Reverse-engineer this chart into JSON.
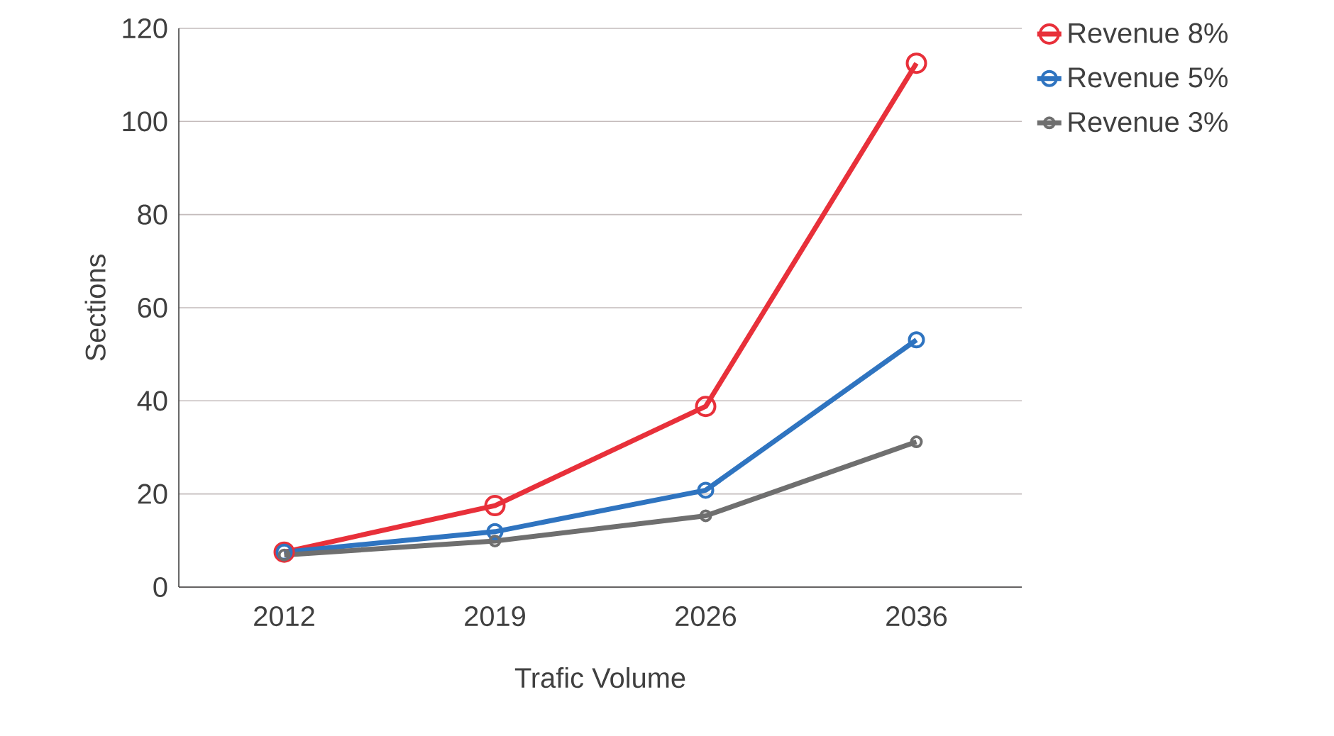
{
  "chart_data": {
    "type": "line",
    "xlabel": "Trafic Volume",
    "ylabel": "Sections",
    "categories": [
      "2012",
      "2019",
      "2026",
      "2036"
    ],
    "series": [
      {
        "name": "Revenue 8%",
        "color": "#e8303a",
        "values": [
          7.5,
          17.5,
          38.8,
          112.5
        ]
      },
      {
        "name": "Revenue 5%",
        "color": "#2f74c0",
        "values": [
          7.5,
          11.9,
          20.8,
          53.1
        ]
      },
      {
        "name": "Revenue 3%",
        "color": "#6f6f6f",
        "values": [
          6.9,
          9.9,
          15.3,
          31.2
        ]
      }
    ],
    "ylim": [
      0,
      120
    ],
    "yticks": [
      0,
      20,
      40,
      60,
      80,
      100,
      120
    ],
    "grid": "y",
    "legend": "top right",
    "marker": "circle",
    "line_style": "solid"
  }
}
